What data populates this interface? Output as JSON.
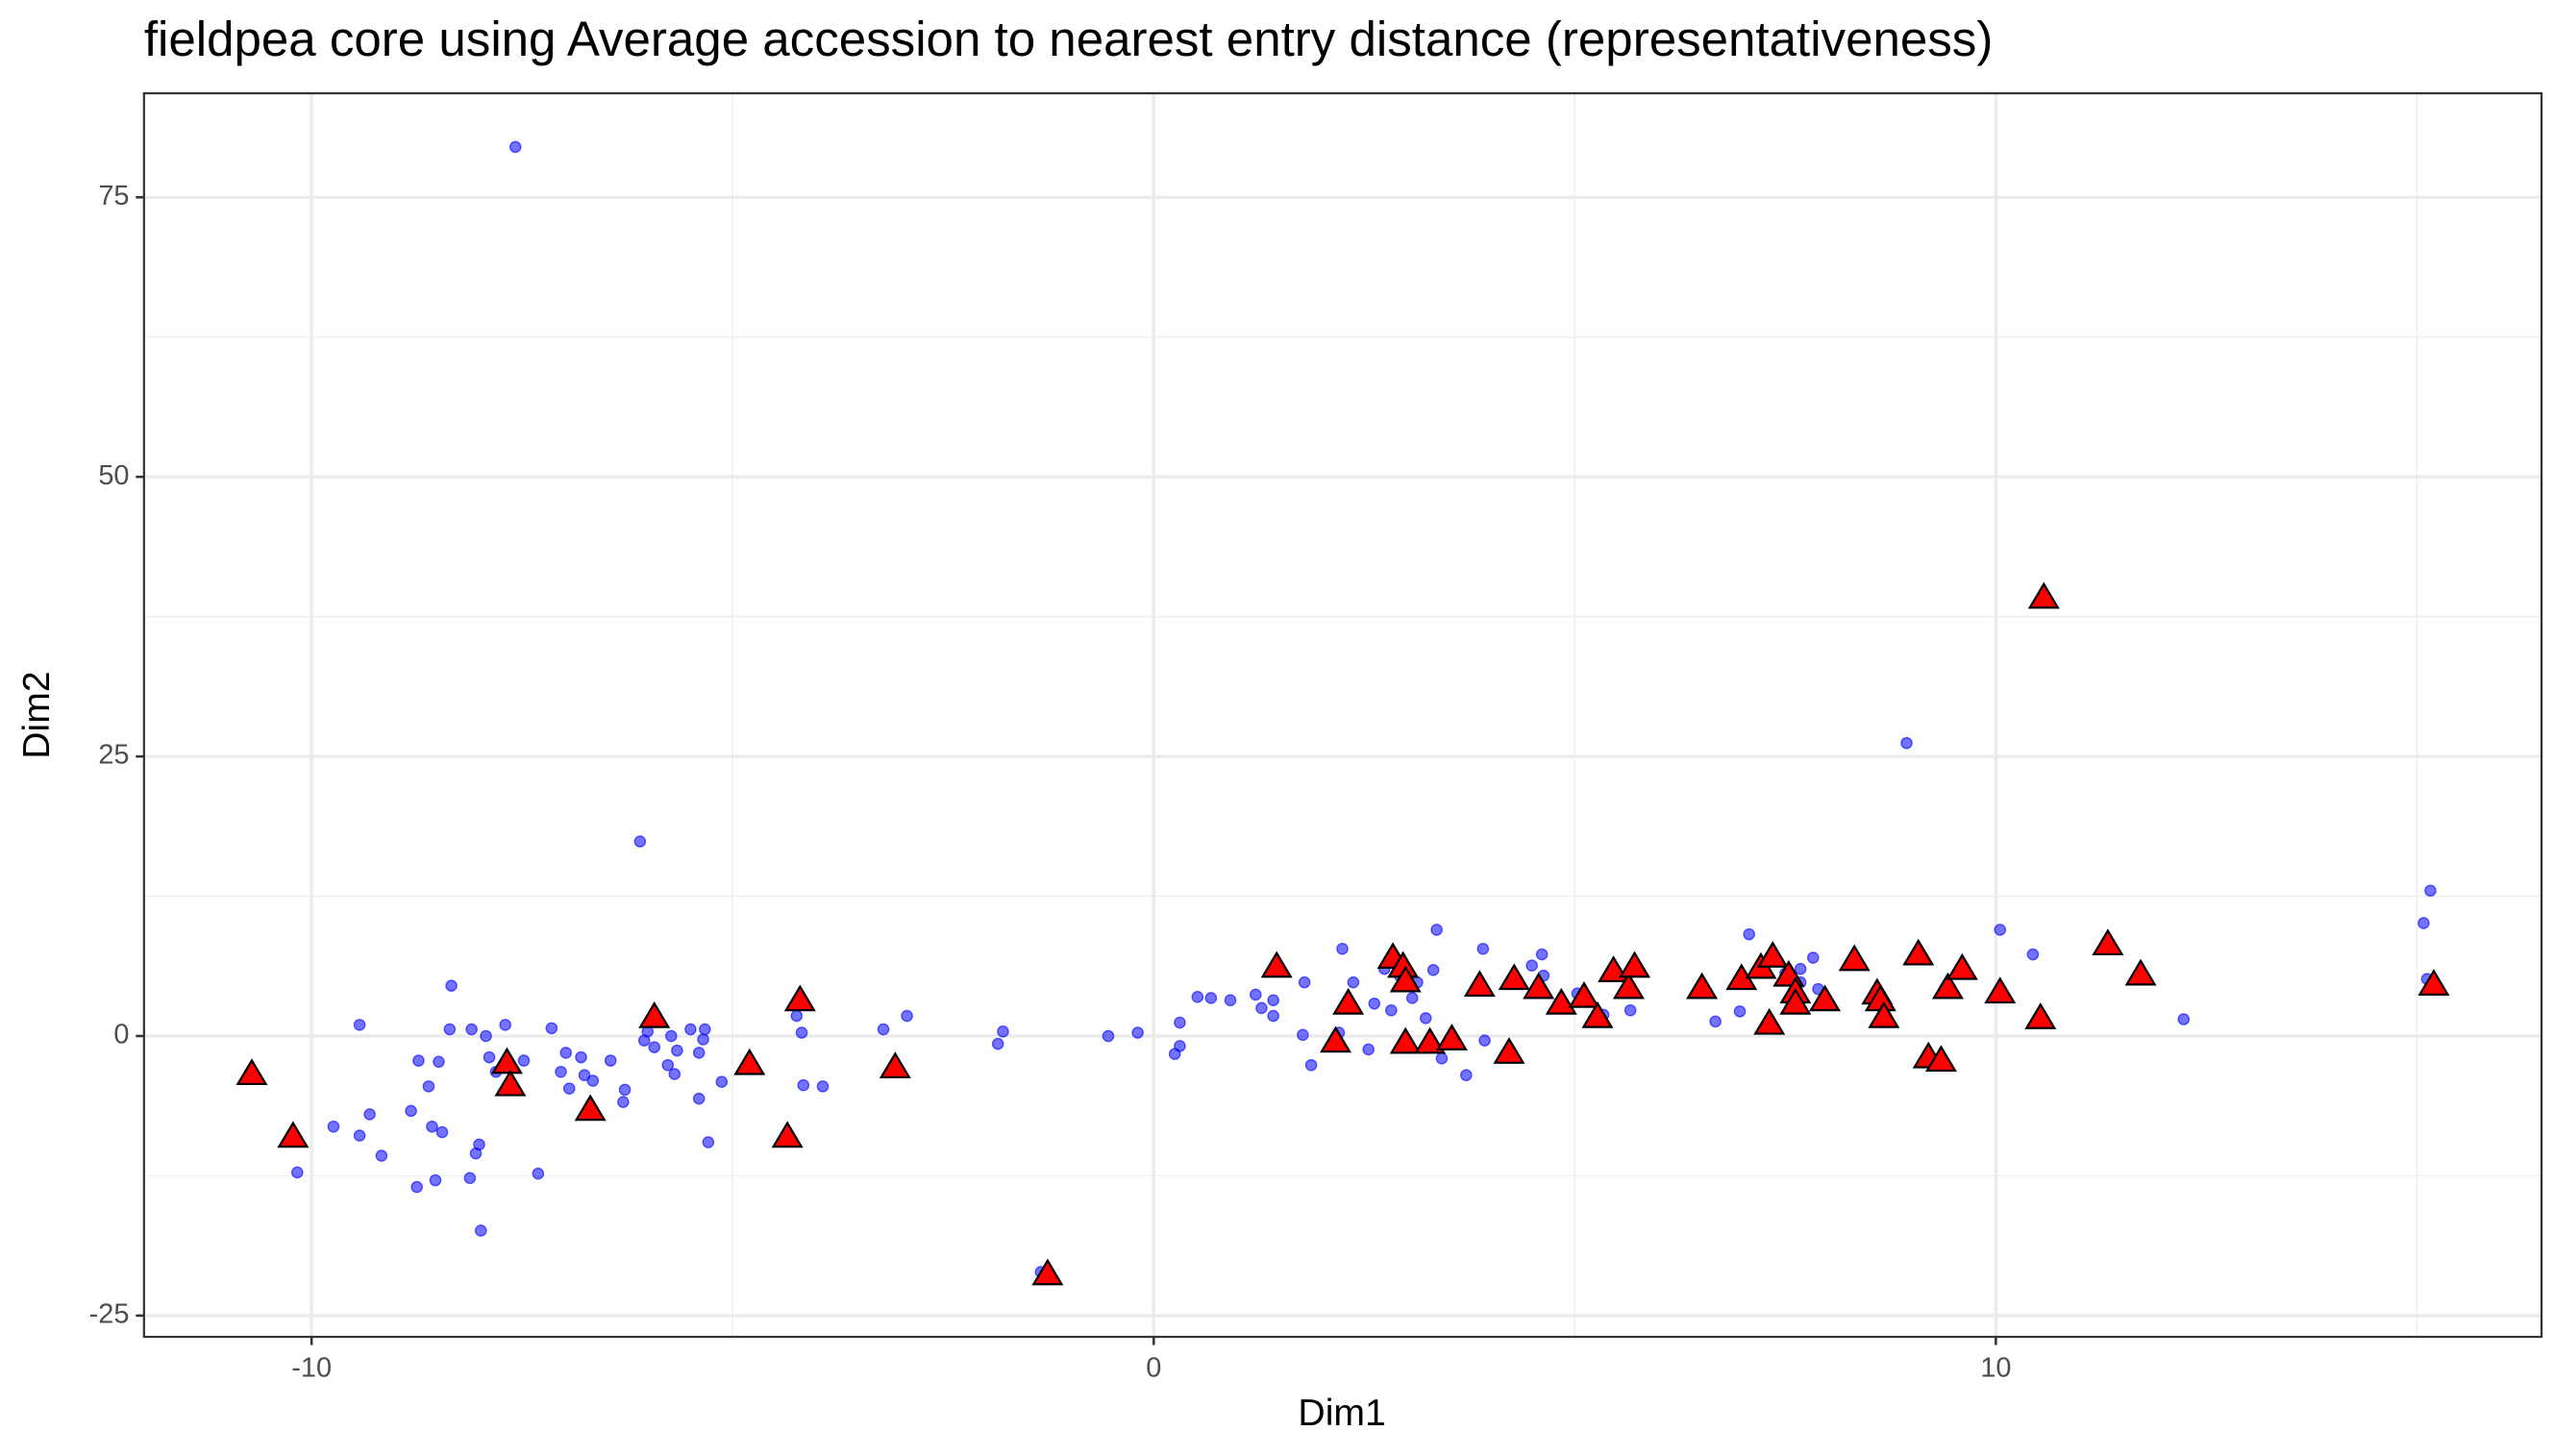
{
  "chart_data": {
    "type": "scatter",
    "title": "fieldpea core using Average accession to nearest entry distance (representativeness)",
    "x_label": "Dim1",
    "y_label": "Dim2",
    "xlim": [
      -11.99,
      16.48
    ],
    "ylim": [
      -26.9,
      84.3
    ],
    "xticks": [
      -10,
      0,
      10
    ],
    "yticks": [
      -25,
      0,
      25,
      50,
      75
    ],
    "x_minor_grid": [
      -5,
      5,
      15
    ],
    "y_minor_grid": [
      -12.5,
      12.5,
      37.5,
      62.5
    ],
    "grid": true,
    "series": [
      {
        "color": "#0000ff",
        "marker": "circle",
        "x": [
          -7.58,
          -6.1,
          8.94,
          15.16,
          15.08,
          15.12,
          12.23,
          10.44,
          10.05,
          7.07,
          7.83,
          6.67,
          6.96,
          7.68,
          7.89,
          3.36,
          3.91,
          4.61,
          4.49,
          4.63,
          2.24,
          1.79,
          2.37,
          2.62,
          2.82,
          3.07,
          3.23,
          3.42,
          3.71,
          3.93,
          2.55,
          2.2,
          1.87,
          1.77,
          1.42,
          1.42,
          1.21,
          1.28,
          0.91,
          0.68,
          0.52,
          0.31,
          0.31,
          0.25,
          -0.19,
          -0.54,
          -1.79,
          -1.85,
          -1.34,
          -2.93,
          -3.21,
          -3.93,
          -4.16,
          -4.24,
          -4.18,
          -5.13,
          -5.29,
          -5.33,
          -5.35,
          -5.4,
          -5.5,
          -5.4,
          -5.66,
          -5.73,
          -5.69,
          -5.77,
          -5.93,
          -6.01,
          -6.05,
          -6.28,
          -6.3,
          -6.45,
          -6.66,
          -6.8,
          -6.76,
          -6.94,
          -6.98,
          -7.15,
          -7.04,
          -7.31,
          -7.48,
          -7.7,
          -7.81,
          -7.89,
          -7.93,
          -7.99,
          -8.01,
          -8.05,
          -8.1,
          -8.12,
          -8.34,
          -8.36,
          -8.45,
          -8.57,
          -8.49,
          -8.61,
          -8.73,
          -8.75,
          -8.82,
          -9.17,
          -9.31,
          -9.43,
          -9.43,
          -9.74,
          -10.17,
          -8.53,
          7.5,
          7.68,
          5.03,
          5.66,
          5.34,
          3.32,
          3.13,
          2.92,
          2.74
        ],
        "values": [
          79.5,
          17.4,
          26.2,
          13.0,
          10.1,
          5.1,
          1.5,
          7.3,
          9.5,
          9.1,
          7.0,
          1.3,
          2.2,
          4.8,
          4.2,
          9.5,
          7.8,
          7.3,
          6.3,
          5.4,
          7.8,
          4.8,
          4.8,
          2.9,
          2.3,
          3.4,
          1.6,
          -2.0,
          -3.5,
          -0.4,
          -1.2,
          0.3,
          -2.6,
          0.1,
          1.8,
          3.2,
          3.7,
          2.5,
          3.2,
          3.4,
          3.5,
          1.2,
          -0.9,
          -1.6,
          0.3,
          0,
          0.4,
          -0.7,
          -21.1,
          1.8,
          0.6,
          -4.5,
          -4.4,
          1.8,
          0.3,
          -4.1,
          -9.5,
          0.6,
          -0.3,
          -1.5,
          0.6,
          -5.6,
          -1.3,
          0,
          -3.4,
          -2.6,
          -1.0,
          0.4,
          -0.4,
          -4.8,
          -5.9,
          -2.2,
          -4.0,
          -1.9,
          -3.5,
          -4.7,
          -1.5,
          0.7,
          -3.2,
          -12.3,
          -2.2,
          1.0,
          -3.2,
          -1.9,
          0,
          -17.4,
          -9.7,
          -10.5,
          0.6,
          -12.7,
          4.5,
          0.6,
          -8.6,
          -8.1,
          -2.3,
          -4.5,
          -2.2,
          -13.5,
          -6.7,
          -10.7,
          -7.0,
          1.0,
          -8.9,
          -8.1,
          -12.2,
          -12.9,
          5.6,
          6.0,
          3.8,
          2.3,
          1.9,
          5.9,
          4.8,
          5.4,
          6.0
        ]
      },
      {
        "color": "#ff0000",
        "marker": "triangle",
        "x": [
          -10.71,
          -10.22,
          -7.68,
          -7.64,
          -6.69,
          -5.93,
          -4.8,
          -4.35,
          -4.2,
          -3.07,
          -1.26,
          1.46,
          2.16,
          2.31,
          2.84,
          2.96,
          2.99,
          2.99,
          3.28,
          3.54,
          3.87,
          4.22,
          4.28,
          4.57,
          4.84,
          5.11,
          5.27,
          5.46,
          5.64,
          5.71,
          6.51,
          6.98,
          7.21,
          7.31,
          7.35,
          7.54,
          7.62,
          7.62,
          7.97,
          8.32,
          8.59,
          8.63,
          8.67,
          9.08,
          9.2,
          9.35,
          9.43,
          9.6,
          10.05,
          10.53,
          10.57,
          11.33,
          11.72,
          15.2
        ],
        "values": [
          -3.5,
          -9.1,
          -2.5,
          -4.5,
          -6.7,
          1.6,
          -2.6,
          -9.1,
          3.1,
          -2.9,
          -21.4,
          6.1,
          -0.6,
          2.8,
          6.9,
          6.1,
          4.8,
          -0.7,
          -0.7,
          -0.4,
          4.4,
          -1.6,
          5.0,
          4.2,
          2.8,
          3.4,
          1.6,
          5.7,
          4.2,
          6.1,
          4.2,
          5.0,
          6.0,
          1.0,
          7.0,
          5.3,
          3.8,
          2.8,
          3.1,
          6.7,
          3.7,
          3.1,
          1.6,
          7.2,
          -2.0,
          -2.3,
          4.2,
          5.9,
          3.8,
          1.5,
          39.1,
          8.1,
          5.4,
          4.5
        ]
      }
    ]
  }
}
